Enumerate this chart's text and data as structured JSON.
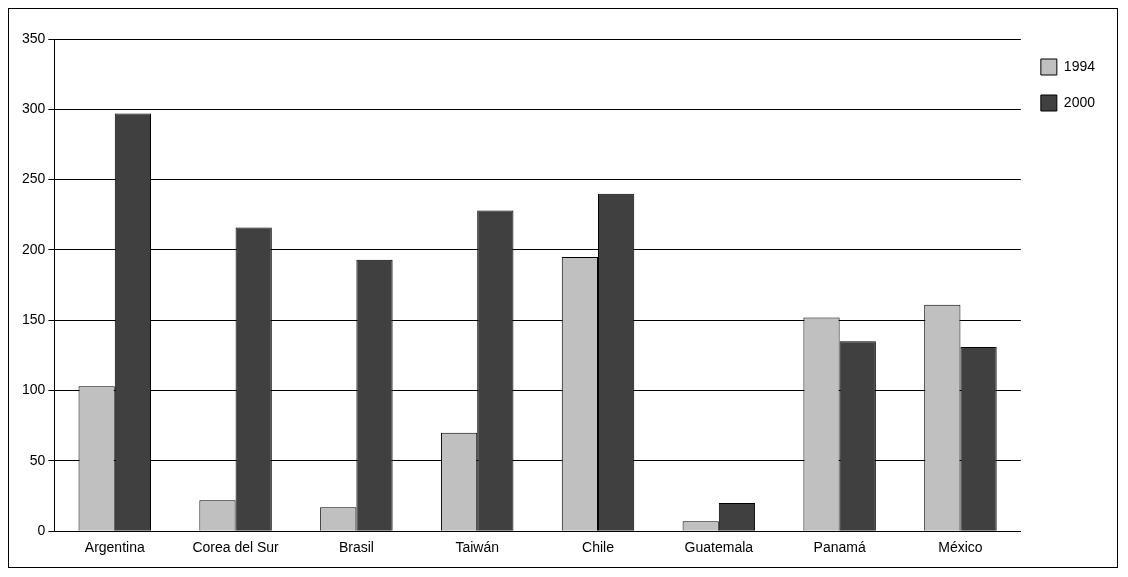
{
  "chart_data": {
    "type": "bar",
    "categories": [
      "Argentina",
      "Corea del Sur",
      "Brasil",
      "Taiwán",
      "Chile",
      "Guatemala",
      "Panamá",
      "México"
    ],
    "series": [
      {
        "name": "1994",
        "color": "#c0c0c0",
        "values": [
          103,
          22,
          17,
          70,
          195,
          7,
          152,
          161
        ]
      },
      {
        "name": "2000",
        "color": "#404040",
        "values": [
          297,
          216,
          193,
          228,
          240,
          20,
          135,
          131
        ]
      }
    ],
    "ylim": [
      0,
      350
    ],
    "yticks": [
      0,
      50,
      100,
      150,
      200,
      250,
      300,
      350
    ],
    "grid": "y",
    "legend": "top right"
  }
}
